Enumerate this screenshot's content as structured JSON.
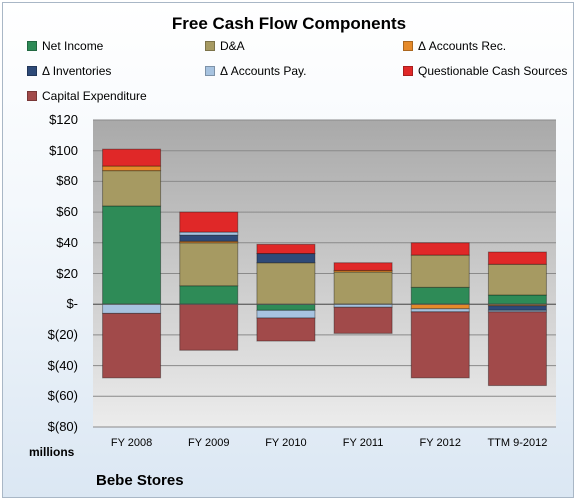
{
  "units_label": "millions",
  "company": "Bebe Stores",
  "colors": {
    "net_income": "#2e8b57",
    "da": "#a69a62",
    "accounts_rec": "#e58a2a",
    "inventories": "#2e4a78",
    "accounts_pay": "#a7c3e0",
    "questionable": "#e02828",
    "capex": "#a14a4a"
  },
  "chart_data": {
    "type": "bar",
    "title": "Free Cash Flow Components",
    "stacked": true,
    "categories": [
      "FY 2008",
      "FY 2009",
      "FY 2010",
      "FY 2011",
      "FY 2012",
      "TTM 9-2012"
    ],
    "ylim": [
      -80,
      120
    ],
    "yticks": [
      120,
      100,
      80,
      60,
      40,
      20,
      0,
      -20,
      -40,
      -60,
      -80
    ],
    "ytick_labels": [
      "$120",
      "$100",
      "$80",
      "$60",
      "$40",
      "$20",
      "$-",
      "$(20)",
      "$(40)",
      "$(60)",
      "$(80)"
    ],
    "legend_position": "top",
    "grid": true,
    "series": [
      {
        "name": "Net Income",
        "key": "net_income",
        "values": [
          64,
          12,
          -4,
          0,
          11,
          6
        ]
      },
      {
        "name": "D&A",
        "key": "da",
        "values": [
          23,
          28,
          27,
          21,
          21,
          20
        ]
      },
      {
        "name": "Δ Accounts Rec.",
        "key": "accounts_rec",
        "values": [
          3,
          1,
          0,
          1,
          -3,
          -1
        ]
      },
      {
        "name": "Δ Inventories",
        "key": "inventories",
        "values": [
          0,
          4,
          6,
          0,
          0,
          -3
        ]
      },
      {
        "name": "Δ Accounts Pay.",
        "key": "accounts_pay",
        "values": [
          -6,
          2,
          -5,
          -2,
          -2,
          -1
        ]
      },
      {
        "name": "Questionable Cash Sources",
        "key": "questionable",
        "values": [
          11,
          13,
          6,
          5,
          8,
          8
        ]
      },
      {
        "name": "Capital Expenditure",
        "key": "capex",
        "values": [
          -42,
          -30,
          -15,
          -17,
          -43,
          -48
        ]
      }
    ]
  }
}
